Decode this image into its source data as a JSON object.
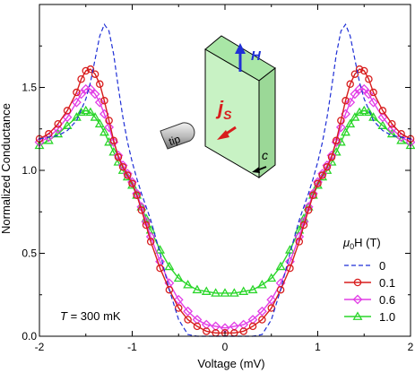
{
  "chart_data": {
    "type": "line",
    "xlabel": "Voltage (mV)",
    "ylabel": "Normalized Conductance",
    "xlim": [
      -2,
      2
    ],
    "ylim": [
      0,
      2
    ],
    "x_ticks": [
      "-2",
      "-1",
      "0",
      "1",
      "2"
    ],
    "y_ticks": [
      "0.0",
      "0.5",
      "1.0",
      "1.5"
    ],
    "legend": {
      "title_mu": "μ",
      "title_sub": "0",
      "title_rest": "H (T)",
      "position": "lower-right"
    },
    "annotation": {
      "T_label": "T",
      "T_value": " = 300 mK"
    },
    "inset": {
      "H_label": "H",
      "j_label": "j",
      "j_sub": "S",
      "c_label": "c",
      "tip_label": "tip"
    },
    "colors": {
      "s0": "#1f2fd6",
      "s01": "#d81d1d",
      "s06": "#e23ee6",
      "s10": "#2ad62a",
      "box": "#c8f2c4"
    },
    "series": [
      {
        "name": "0",
        "style": "dashed",
        "marker": "none",
        "x": [
          -2.0,
          -1.9,
          -1.8,
          -1.7,
          -1.6,
          -1.5,
          -1.45,
          -1.4,
          -1.35,
          -1.3,
          -1.25,
          -1.2,
          -1.15,
          -1.1,
          -1.05,
          -1.0,
          -0.95,
          -0.9,
          -0.8,
          -0.7,
          -0.6,
          -0.5,
          -0.4,
          -0.3,
          -0.2,
          -0.1,
          0.0,
          0.1,
          0.2,
          0.3,
          0.4,
          0.5,
          0.6,
          0.7,
          0.8,
          0.9,
          0.95,
          1.0,
          1.05,
          1.1,
          1.15,
          1.2,
          1.25,
          1.3,
          1.35,
          1.4,
          1.45,
          1.5,
          1.6,
          1.7,
          1.8,
          1.9,
          2.0
        ],
        "y": [
          1.19,
          1.2,
          1.21,
          1.24,
          1.3,
          1.43,
          1.53,
          1.67,
          1.81,
          1.88,
          1.84,
          1.7,
          1.5,
          1.32,
          1.17,
          1.05,
          0.95,
          0.86,
          0.7,
          0.5,
          0.28,
          0.1,
          0.01,
          0.0,
          0.0,
          0.0,
          0.0,
          0.0,
          0.0,
          0.0,
          0.01,
          0.1,
          0.28,
          0.5,
          0.7,
          0.86,
          0.95,
          1.05,
          1.17,
          1.32,
          1.5,
          1.7,
          1.84,
          1.88,
          1.81,
          1.67,
          1.53,
          1.43,
          1.3,
          1.24,
          1.21,
          1.2,
          1.19
        ]
      },
      {
        "name": "0.1",
        "style": "solid",
        "marker": "circle",
        "x": [
          -2.0,
          -1.9,
          -1.8,
          -1.7,
          -1.6,
          -1.55,
          -1.5,
          -1.45,
          -1.4,
          -1.35,
          -1.3,
          -1.25,
          -1.2,
          -1.15,
          -1.1,
          -1.05,
          -1.0,
          -0.95,
          -0.9,
          -0.85,
          -0.8,
          -0.7,
          -0.6,
          -0.5,
          -0.4,
          -0.3,
          -0.2,
          -0.1,
          0.0,
          0.1,
          0.2,
          0.3,
          0.4,
          0.5,
          0.6,
          0.7,
          0.8,
          0.85,
          0.9,
          0.95,
          1.0,
          1.05,
          1.1,
          1.15,
          1.2,
          1.25,
          1.3,
          1.35,
          1.4,
          1.45,
          1.5,
          1.55,
          1.6,
          1.7,
          1.8,
          1.9,
          2.0
        ],
        "y": [
          1.19,
          1.22,
          1.28,
          1.36,
          1.47,
          1.55,
          1.6,
          1.61,
          1.58,
          1.52,
          1.42,
          1.3,
          1.18,
          1.08,
          1.02,
          0.97,
          0.92,
          0.85,
          0.76,
          0.67,
          0.57,
          0.41,
          0.28,
          0.17,
          0.1,
          0.06,
          0.03,
          0.02,
          0.02,
          0.02,
          0.03,
          0.06,
          0.1,
          0.17,
          0.28,
          0.41,
          0.57,
          0.67,
          0.76,
          0.85,
          0.92,
          0.97,
          1.02,
          1.08,
          1.18,
          1.3,
          1.42,
          1.52,
          1.58,
          1.61,
          1.6,
          1.55,
          1.47,
          1.36,
          1.28,
          1.22,
          1.19
        ]
      },
      {
        "name": "0.6",
        "style": "solid",
        "marker": "diamond",
        "x": [
          -2.0,
          -1.9,
          -1.8,
          -1.7,
          -1.6,
          -1.55,
          -1.5,
          -1.45,
          -1.4,
          -1.35,
          -1.3,
          -1.25,
          -1.2,
          -1.15,
          -1.1,
          -1.05,
          -1.0,
          -0.95,
          -0.9,
          -0.85,
          -0.8,
          -0.7,
          -0.6,
          -0.5,
          -0.4,
          -0.3,
          -0.2,
          -0.1,
          0.0,
          0.1,
          0.2,
          0.3,
          0.4,
          0.5,
          0.6,
          0.7,
          0.8,
          0.85,
          0.9,
          0.95,
          1.0,
          1.05,
          1.1,
          1.15,
          1.2,
          1.25,
          1.3,
          1.35,
          1.4,
          1.45,
          1.5,
          1.55,
          1.6,
          1.7,
          1.8,
          1.9,
          2.0
        ],
        "y": [
          1.17,
          1.2,
          1.25,
          1.32,
          1.41,
          1.46,
          1.49,
          1.49,
          1.46,
          1.41,
          1.34,
          1.26,
          1.17,
          1.09,
          1.03,
          0.98,
          0.93,
          0.86,
          0.78,
          0.69,
          0.6,
          0.45,
          0.32,
          0.22,
          0.15,
          0.1,
          0.07,
          0.06,
          0.05,
          0.06,
          0.07,
          0.1,
          0.15,
          0.22,
          0.32,
          0.45,
          0.6,
          0.69,
          0.78,
          0.86,
          0.93,
          0.98,
          1.03,
          1.09,
          1.17,
          1.26,
          1.34,
          1.41,
          1.46,
          1.49,
          1.49,
          1.46,
          1.41,
          1.32,
          1.25,
          1.2,
          1.17
        ]
      },
      {
        "name": "1.0",
        "style": "solid",
        "marker": "triangle",
        "x": [
          -2.0,
          -1.9,
          -1.8,
          -1.7,
          -1.6,
          -1.55,
          -1.5,
          -1.45,
          -1.4,
          -1.35,
          -1.3,
          -1.25,
          -1.2,
          -1.15,
          -1.1,
          -1.05,
          -1.0,
          -0.95,
          -0.9,
          -0.85,
          -0.8,
          -0.7,
          -0.6,
          -0.5,
          -0.4,
          -0.3,
          -0.2,
          -0.1,
          0.0,
          0.1,
          0.2,
          0.3,
          0.4,
          0.5,
          0.6,
          0.7,
          0.8,
          0.85,
          0.9,
          0.95,
          1.0,
          1.05,
          1.1,
          1.15,
          1.2,
          1.25,
          1.3,
          1.35,
          1.4,
          1.45,
          1.5,
          1.55,
          1.6,
          1.7,
          1.8,
          1.9,
          2.0
        ],
        "y": [
          1.15,
          1.18,
          1.22,
          1.27,
          1.32,
          1.35,
          1.36,
          1.35,
          1.32,
          1.28,
          1.23,
          1.17,
          1.11,
          1.05,
          1.0,
          0.96,
          0.91,
          0.85,
          0.78,
          0.71,
          0.64,
          0.52,
          0.42,
          0.35,
          0.31,
          0.28,
          0.27,
          0.26,
          0.26,
          0.26,
          0.27,
          0.28,
          0.31,
          0.35,
          0.42,
          0.52,
          0.64,
          0.71,
          0.78,
          0.85,
          0.91,
          0.96,
          1.0,
          1.05,
          1.11,
          1.17,
          1.23,
          1.28,
          1.32,
          1.35,
          1.36,
          1.35,
          1.32,
          1.27,
          1.22,
          1.18,
          1.15
        ]
      }
    ]
  }
}
